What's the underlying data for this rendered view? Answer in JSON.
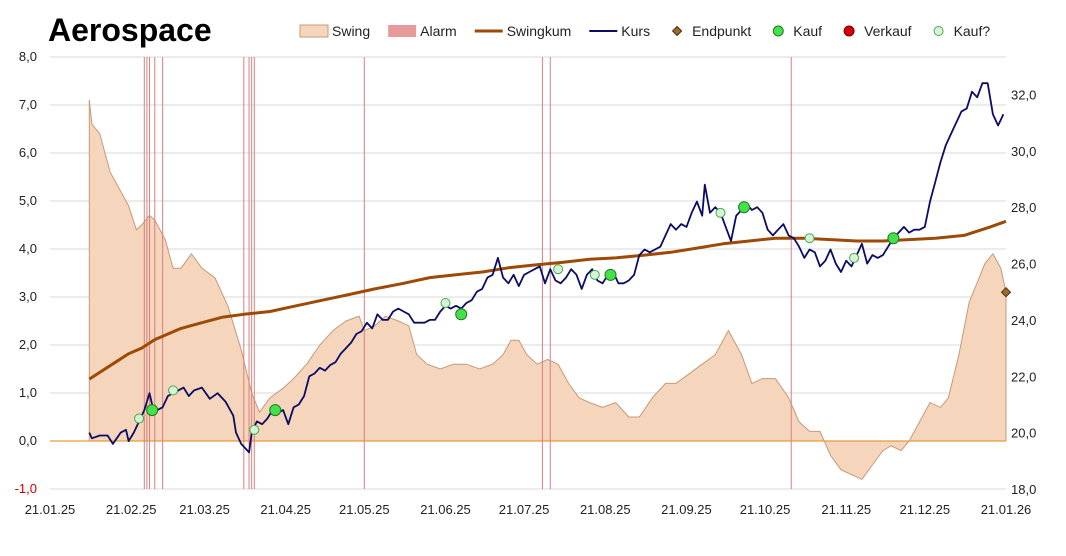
{
  "chart_data": {
    "type": "line",
    "title": "Aerospace",
    "legend_placement": "top",
    "legend": [
      {
        "key": "swing",
        "label": "Swing",
        "kind": "area",
        "color": "#f5d5bb",
        "stroke": "#c69a78"
      },
      {
        "key": "alarm",
        "label": "Alarm",
        "kind": "bar",
        "color": "#e89a9a"
      },
      {
        "key": "swingkum",
        "label": "Swingkum",
        "kind": "line",
        "color": "#9c4a06"
      },
      {
        "key": "kurs",
        "label": "Kurs",
        "kind": "line",
        "color": "#0b0c64"
      },
      {
        "key": "endpunkt",
        "label": "Endpunkt",
        "kind": "diamond",
        "color": "#9c6a2a"
      },
      {
        "key": "kauf",
        "label": "Kauf",
        "kind": "dot",
        "color": "#44e24a"
      },
      {
        "key": "verkauf",
        "label": "Verkauf",
        "kind": "dot",
        "color": "#d40000"
      },
      {
        "key": "kauf_q",
        "label": "Kauf?",
        "kind": "ring",
        "color": "#8ee38f"
      }
    ],
    "x_range": [
      "2025-01-21",
      "2026-01-21"
    ],
    "x_tick_labels": [
      "21.01.25",
      "21.02.25",
      "21.03.25",
      "21.04.25",
      "21.05.25",
      "21.06.25",
      "21.07.25",
      "21.08.25",
      "21.09.25",
      "21.10.25",
      "21.11.25",
      "21.12.25",
      "21.01.26"
    ],
    "x_tick_dates": [
      "2025-01-21",
      "2025-02-21",
      "2025-03-21",
      "2025-04-21",
      "2025-05-21",
      "2025-06-21",
      "2025-07-21",
      "2025-08-21",
      "2025-09-21",
      "2025-10-21",
      "2025-11-21",
      "2025-12-21",
      "2026-01-21"
    ],
    "y_left": {
      "min": -1,
      "max": 8,
      "ticks": [
        "-1,0",
        "0,0",
        "1,0",
        "2,0",
        "3,0",
        "4,0",
        "5,0",
        "6,0",
        "7,0",
        "8,0"
      ],
      "tick_values": [
        -1,
        0,
        1,
        2,
        3,
        4,
        5,
        6,
        7,
        8
      ]
    },
    "y_right": {
      "min": 18,
      "max": 33.33,
      "ticks": [
        "18,0",
        "20,0",
        "22,0",
        "24,0",
        "26,0",
        "28,0",
        "30,0",
        "32,0"
      ],
      "tick_values": [
        18,
        20,
        22,
        24,
        26,
        28,
        30,
        32
      ]
    },
    "grid": "horizontal",
    "alarm_dates": [
      "2025-02-26",
      "2025-02-27",
      "2025-02-28",
      "2025-03-02",
      "2025-03-05",
      "2025-04-05",
      "2025-04-07",
      "2025-04-08",
      "2025-04-09",
      "2025-05-21",
      "2025-07-28",
      "2025-07-31",
      "2025-10-31"
    ],
    "swing": [
      [
        "2025-02-05",
        7.1
      ],
      [
        "2025-02-06",
        6.6
      ],
      [
        "2025-02-09",
        6.4
      ],
      [
        "2025-02-13",
        5.6
      ],
      [
        "2025-02-17",
        5.2
      ],
      [
        "2025-02-20",
        4.9
      ],
      [
        "2025-02-23",
        4.4
      ],
      [
        "2025-02-25",
        4.5
      ],
      [
        "2025-02-28",
        4.7
      ],
      [
        "2025-03-02",
        4.6
      ],
      [
        "2025-03-06",
        4.2
      ],
      [
        "2025-03-09",
        3.6
      ],
      [
        "2025-03-12",
        3.6
      ],
      [
        "2025-03-16",
        3.9
      ],
      [
        "2025-03-20",
        3.6
      ],
      [
        "2025-03-25",
        3.4
      ],
      [
        "2025-03-30",
        2.8
      ],
      [
        "2025-04-04",
        1.9
      ],
      [
        "2025-04-08",
        1.0
      ],
      [
        "2025-04-11",
        0.6
      ],
      [
        "2025-04-15",
        0.9
      ],
      [
        "2025-04-20",
        1.1
      ],
      [
        "2025-04-24",
        1.3
      ],
      [
        "2025-04-29",
        1.6
      ],
      [
        "2025-05-04",
        2.0
      ],
      [
        "2025-05-09",
        2.3
      ],
      [
        "2025-05-14",
        2.5
      ],
      [
        "2025-05-19",
        2.6
      ],
      [
        "2025-05-21",
        2.3
      ],
      [
        "2025-05-25",
        2.4
      ],
      [
        "2025-05-29",
        2.6
      ],
      [
        "2025-06-03",
        2.5
      ],
      [
        "2025-06-07",
        2.4
      ],
      [
        "2025-06-10",
        1.8
      ],
      [
        "2025-06-14",
        1.6
      ],
      [
        "2025-06-19",
        1.5
      ],
      [
        "2025-06-24",
        1.6
      ],
      [
        "2025-06-29",
        1.6
      ],
      [
        "2025-07-04",
        1.5
      ],
      [
        "2025-07-09",
        1.6
      ],
      [
        "2025-07-13",
        1.8
      ],
      [
        "2025-07-16",
        2.1
      ],
      [
        "2025-07-19",
        2.1
      ],
      [
        "2025-07-22",
        1.8
      ],
      [
        "2025-07-26",
        1.6
      ],
      [
        "2025-07-30",
        1.7
      ],
      [
        "2025-08-03",
        1.6
      ],
      [
        "2025-08-07",
        1.2
      ],
      [
        "2025-08-11",
        0.9
      ],
      [
        "2025-08-15",
        0.8
      ],
      [
        "2025-08-20",
        0.7
      ],
      [
        "2025-08-25",
        0.8
      ],
      [
        "2025-08-30",
        0.5
      ],
      [
        "2025-09-03",
        0.5
      ],
      [
        "2025-09-08",
        0.9
      ],
      [
        "2025-09-13",
        1.2
      ],
      [
        "2025-09-17",
        1.2
      ],
      [
        "2025-09-22",
        1.4
      ],
      [
        "2025-09-27",
        1.6
      ],
      [
        "2025-10-02",
        1.8
      ],
      [
        "2025-10-07",
        2.3
      ],
      [
        "2025-10-12",
        1.8
      ],
      [
        "2025-10-16",
        1.2
      ],
      [
        "2025-10-20",
        1.3
      ],
      [
        "2025-10-25",
        1.3
      ],
      [
        "2025-10-30",
        0.9
      ],
      [
        "2025-11-03",
        0.4
      ],
      [
        "2025-11-07",
        0.2
      ],
      [
        "2025-11-11",
        0.2
      ],
      [
        "2025-11-15",
        -0.3
      ],
      [
        "2025-11-19",
        -0.6
      ],
      [
        "2025-11-23",
        -0.7
      ],
      [
        "2025-11-27",
        -0.8
      ],
      [
        "2025-12-01",
        -0.5
      ],
      [
        "2025-12-05",
        -0.2
      ],
      [
        "2025-12-08",
        -0.1
      ],
      [
        "2025-12-12",
        -0.2
      ],
      [
        "2025-12-15",
        0.0
      ],
      [
        "2025-12-19",
        0.4
      ],
      [
        "2025-12-23",
        0.8
      ],
      [
        "2025-12-27",
        0.7
      ],
      [
        "2025-12-30",
        0.9
      ],
      [
        "2026-01-03",
        1.8
      ],
      [
        "2026-01-07",
        2.9
      ],
      [
        "2026-01-10",
        3.3
      ],
      [
        "2026-01-13",
        3.7
      ],
      [
        "2026-01-16",
        3.9
      ],
      [
        "2026-01-19",
        3.6
      ],
      [
        "2026-01-21",
        3.1
      ]
    ],
    "swingkum": [
      [
        "2025-02-05",
        21.9
      ],
      [
        "2025-02-10",
        22.2
      ],
      [
        "2025-02-15",
        22.5
      ],
      [
        "2025-02-20",
        22.8
      ],
      [
        "2025-02-25",
        23.0
      ],
      [
        "2025-03-02",
        23.3
      ],
      [
        "2025-03-07",
        23.5
      ],
      [
        "2025-03-12",
        23.7
      ],
      [
        "2025-03-20",
        23.9
      ],
      [
        "2025-03-28",
        24.1
      ],
      [
        "2025-04-05",
        24.2
      ],
      [
        "2025-04-15",
        24.3
      ],
      [
        "2025-04-25",
        24.5
      ],
      [
        "2025-05-05",
        24.7
      ],
      [
        "2025-05-15",
        24.9
      ],
      [
        "2025-05-25",
        25.1
      ],
      [
        "2025-06-05",
        25.3
      ],
      [
        "2025-06-15",
        25.5
      ],
      [
        "2025-06-25",
        25.6
      ],
      [
        "2025-07-05",
        25.7
      ],
      [
        "2025-07-15",
        25.85
      ],
      [
        "2025-07-25",
        25.95
      ],
      [
        "2025-08-05",
        26.05
      ],
      [
        "2025-08-15",
        26.15
      ],
      [
        "2025-08-25",
        26.2
      ],
      [
        "2025-09-05",
        26.3
      ],
      [
        "2025-09-15",
        26.4
      ],
      [
        "2025-09-25",
        26.55
      ],
      [
        "2025-10-05",
        26.7
      ],
      [
        "2025-10-15",
        26.8
      ],
      [
        "2025-10-25",
        26.9
      ],
      [
        "2025-11-05",
        26.9
      ],
      [
        "2025-11-15",
        26.85
      ],
      [
        "2025-11-25",
        26.8
      ],
      [
        "2025-12-05",
        26.8
      ],
      [
        "2025-12-15",
        26.85
      ],
      [
        "2025-12-25",
        26.9
      ],
      [
        "2026-01-05",
        27.0
      ],
      [
        "2026-01-15",
        27.3
      ],
      [
        "2026-01-21",
        27.5
      ]
    ],
    "kurs": [
      [
        "2025-02-05",
        20.0
      ],
      [
        "2025-02-06",
        19.8
      ],
      [
        "2025-02-09",
        19.9
      ],
      [
        "2025-02-12",
        19.9
      ],
      [
        "2025-02-14",
        19.6
      ],
      [
        "2025-02-17",
        20.0
      ],
      [
        "2025-02-19",
        20.1
      ],
      [
        "2025-02-20",
        19.7
      ],
      [
        "2025-02-22",
        20.0
      ],
      [
        "2025-02-24",
        20.4
      ],
      [
        "2025-02-26",
        20.8
      ],
      [
        "2025-02-28",
        21.4
      ],
      [
        "2025-03-01",
        21.0
      ],
      [
        "2025-03-03",
        20.8
      ],
      [
        "2025-03-05",
        20.9
      ],
      [
        "2025-03-07",
        21.3
      ],
      [
        "2025-03-09",
        21.4
      ],
      [
        "2025-03-11",
        21.5
      ],
      [
        "2025-03-13",
        21.6
      ],
      [
        "2025-03-15",
        21.3
      ],
      [
        "2025-03-17",
        21.5
      ],
      [
        "2025-03-20",
        21.6
      ],
      [
        "2025-03-23",
        21.2
      ],
      [
        "2025-03-26",
        21.4
      ],
      [
        "2025-03-29",
        21.1
      ],
      [
        "2025-04-01",
        20.6
      ],
      [
        "2025-04-02",
        20.0
      ],
      [
        "2025-04-04",
        19.6
      ],
      [
        "2025-04-07",
        19.3
      ],
      [
        "2025-04-08",
        20.0
      ],
      [
        "2025-04-10",
        20.4
      ],
      [
        "2025-04-12",
        20.3
      ],
      [
        "2025-04-14",
        20.5
      ],
      [
        "2025-04-16",
        20.8
      ],
      [
        "2025-04-18",
        20.7
      ],
      [
        "2025-04-20",
        20.8
      ],
      [
        "2025-04-22",
        20.3
      ],
      [
        "2025-04-24",
        20.9
      ],
      [
        "2025-04-26",
        21.0
      ],
      [
        "2025-04-28",
        21.3
      ],
      [
        "2025-04-30",
        22.0
      ],
      [
        "2025-05-02",
        22.1
      ],
      [
        "2025-05-04",
        22.3
      ],
      [
        "2025-05-06",
        22.2
      ],
      [
        "2025-05-08",
        22.4
      ],
      [
        "2025-05-10",
        22.5
      ],
      [
        "2025-05-12",
        22.8
      ],
      [
        "2025-05-14",
        23.0
      ],
      [
        "2025-05-16",
        23.2
      ],
      [
        "2025-05-18",
        23.5
      ],
      [
        "2025-05-20",
        23.6
      ],
      [
        "2025-05-22",
        23.9
      ],
      [
        "2025-05-24",
        23.7
      ],
      [
        "2025-05-26",
        24.2
      ],
      [
        "2025-05-28",
        24.0
      ],
      [
        "2025-05-30",
        24.0
      ],
      [
        "2025-06-01",
        24.3
      ],
      [
        "2025-06-03",
        24.4
      ],
      [
        "2025-06-05",
        24.3
      ],
      [
        "2025-06-07",
        24.2
      ],
      [
        "2025-06-09",
        23.9
      ],
      [
        "2025-06-11",
        23.9
      ],
      [
        "2025-06-13",
        23.9
      ],
      [
        "2025-06-15",
        24.0
      ],
      [
        "2025-06-17",
        24.0
      ],
      [
        "2025-06-19",
        24.3
      ],
      [
        "2025-06-21",
        24.5
      ],
      [
        "2025-06-23",
        24.4
      ],
      [
        "2025-06-25",
        24.5
      ],
      [
        "2025-06-27",
        24.4
      ],
      [
        "2025-06-29",
        24.6
      ],
      [
        "2025-07-01",
        24.7
      ],
      [
        "2025-07-03",
        25.0
      ],
      [
        "2025-07-05",
        25.1
      ],
      [
        "2025-07-07",
        25.5
      ],
      [
        "2025-07-09",
        25.6
      ],
      [
        "2025-07-11",
        26.2
      ],
      [
        "2025-07-13",
        25.5
      ],
      [
        "2025-07-15",
        25.3
      ],
      [
        "2025-07-17",
        25.6
      ],
      [
        "2025-07-19",
        25.2
      ],
      [
        "2025-07-21",
        25.6
      ],
      [
        "2025-07-23",
        25.7
      ],
      [
        "2025-07-25",
        25.8
      ],
      [
        "2025-07-27",
        25.9
      ],
      [
        "2025-07-29",
        25.3
      ],
      [
        "2025-07-31",
        25.8
      ],
      [
        "2025-08-02",
        25.4
      ],
      [
        "2025-08-04",
        25.3
      ],
      [
        "2025-08-06",
        25.5
      ],
      [
        "2025-08-08",
        25.8
      ],
      [
        "2025-08-10",
        25.6
      ],
      [
        "2025-08-12",
        25.1
      ],
      [
        "2025-08-14",
        25.6
      ],
      [
        "2025-08-16",
        25.8
      ],
      [
        "2025-08-18",
        25.4
      ],
      [
        "2025-08-20",
        25.3
      ],
      [
        "2025-08-22",
        25.6
      ],
      [
        "2025-08-24",
        25.7
      ],
      [
        "2025-08-26",
        25.3
      ],
      [
        "2025-08-28",
        25.3
      ],
      [
        "2025-08-30",
        25.4
      ],
      [
        "2025-09-01",
        25.6
      ],
      [
        "2025-09-03",
        26.3
      ],
      [
        "2025-09-05",
        26.5
      ],
      [
        "2025-09-07",
        26.4
      ],
      [
        "2025-09-09",
        26.5
      ],
      [
        "2025-09-11",
        26.6
      ],
      [
        "2025-09-13",
        27.0
      ],
      [
        "2025-09-15",
        27.4
      ],
      [
        "2025-09-17",
        27.2
      ],
      [
        "2025-09-19",
        27.4
      ],
      [
        "2025-09-21",
        27.3
      ],
      [
        "2025-09-23",
        27.8
      ],
      [
        "2025-09-25",
        28.2
      ],
      [
        "2025-09-27",
        27.7
      ],
      [
        "2025-09-28",
        28.8
      ],
      [
        "2025-09-30",
        27.8
      ],
      [
        "2025-10-02",
        28.0
      ],
      [
        "2025-10-04",
        27.8
      ],
      [
        "2025-10-06",
        27.3
      ],
      [
        "2025-10-08",
        26.8
      ],
      [
        "2025-10-10",
        27.7
      ],
      [
        "2025-10-12",
        27.9
      ],
      [
        "2025-10-14",
        28.1
      ],
      [
        "2025-10-16",
        27.9
      ],
      [
        "2025-10-18",
        28.0
      ],
      [
        "2025-10-20",
        27.8
      ],
      [
        "2025-10-22",
        27.2
      ],
      [
        "2025-10-24",
        27.0
      ],
      [
        "2025-10-26",
        27.2
      ],
      [
        "2025-10-28",
        27.4
      ],
      [
        "2025-10-30",
        27.0
      ],
      [
        "2025-11-01",
        26.9
      ],
      [
        "2025-11-03",
        26.6
      ],
      [
        "2025-11-05",
        26.2
      ],
      [
        "2025-11-07",
        26.5
      ],
      [
        "2025-11-09",
        26.4
      ],
      [
        "2025-11-11",
        25.9
      ],
      [
        "2025-11-13",
        26.1
      ],
      [
        "2025-11-15",
        26.5
      ],
      [
        "2025-11-17",
        26.0
      ],
      [
        "2025-11-19",
        25.7
      ],
      [
        "2025-11-21",
        26.1
      ],
      [
        "2025-11-23",
        25.9
      ],
      [
        "2025-11-25",
        26.3
      ],
      [
        "2025-11-27",
        26.7
      ],
      [
        "2025-11-29",
        26.0
      ],
      [
        "2025-12-01",
        26.3
      ],
      [
        "2025-12-03",
        26.2
      ],
      [
        "2025-12-05",
        26.3
      ],
      [
        "2025-12-07",
        26.6
      ],
      [
        "2025-12-09",
        26.9
      ],
      [
        "2025-12-11",
        27.1
      ],
      [
        "2025-12-13",
        27.3
      ],
      [
        "2025-12-15",
        27.1
      ],
      [
        "2025-12-17",
        27.2
      ],
      [
        "2025-12-19",
        27.2
      ],
      [
        "2025-12-21",
        27.3
      ],
      [
        "2025-12-23",
        28.2
      ],
      [
        "2025-12-25",
        28.9
      ],
      [
        "2025-12-27",
        29.6
      ],
      [
        "2025-12-29",
        30.2
      ],
      [
        "2025-12-31",
        30.6
      ],
      [
        "2026-01-02",
        31.0
      ],
      [
        "2026-01-04",
        31.4
      ],
      [
        "2026-01-06",
        31.5
      ],
      [
        "2026-01-08",
        32.1
      ],
      [
        "2026-01-10",
        31.9
      ],
      [
        "2026-01-12",
        32.4
      ],
      [
        "2026-01-14",
        32.4
      ],
      [
        "2026-01-16",
        31.3
      ],
      [
        "2026-01-18",
        30.9
      ],
      [
        "2026-01-20",
        31.3
      ]
    ],
    "endpunkt": [
      [
        "2026-01-21",
        3.1
      ]
    ],
    "kauf": [
      [
        "2025-03-01",
        20.8
      ],
      [
        "2025-04-17",
        20.8
      ],
      [
        "2025-06-27",
        24.2
      ],
      [
        "2025-08-23",
        25.6
      ],
      [
        "2025-10-13",
        28.0
      ],
      [
        "2025-12-09",
        26.9
      ]
    ],
    "verkauf": [],
    "kauf_q": [
      [
        "2025-02-24",
        20.5
      ],
      [
        "2025-03-09",
        21.5
      ],
      [
        "2025-04-09",
        20.1
      ],
      [
        "2025-06-21",
        24.6
      ],
      [
        "2025-08-03",
        25.8
      ],
      [
        "2025-08-17",
        25.6
      ],
      [
        "2025-10-04",
        27.8
      ],
      [
        "2025-11-07",
        26.9
      ],
      [
        "2025-11-24",
        26.2
      ]
    ]
  }
}
